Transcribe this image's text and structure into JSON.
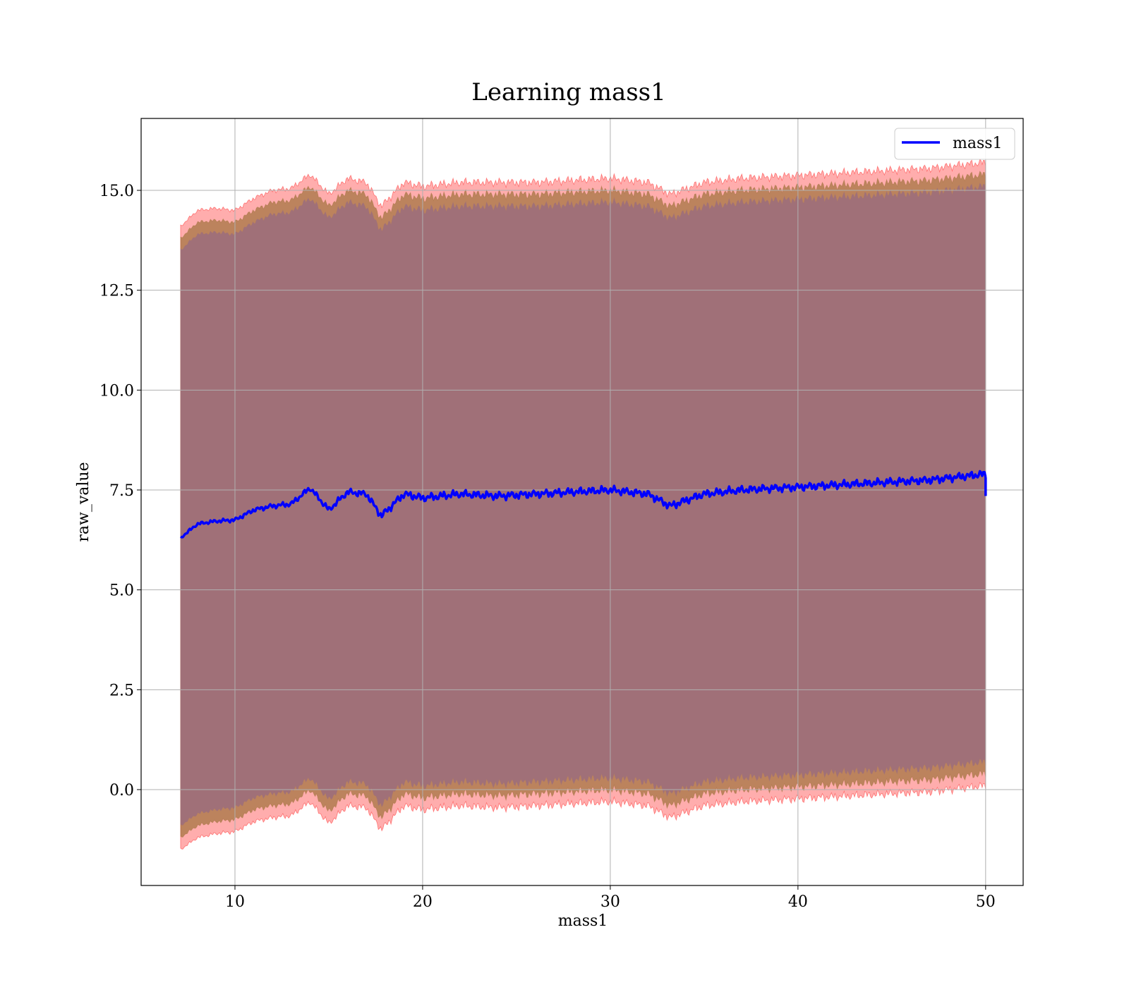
{
  "chart_data": {
    "type": "line",
    "title": "Learning mass1",
    "xlabel": "mass1",
    "ylabel": "raw_value",
    "xlim": [
      5,
      52
    ],
    "ylim": [
      -2.4,
      16.8
    ],
    "xticks": [
      10,
      20,
      30,
      40,
      50
    ],
    "yticks": [
      0.0,
      2.5,
      5.0,
      7.5,
      10.0,
      12.5,
      15.0
    ],
    "xtick_labels": [
      "10",
      "20",
      "30",
      "40",
      "50"
    ],
    "ytick_labels": [
      "0.0",
      "2.5",
      "5.0",
      "7.5",
      "10.0",
      "12.5",
      "15.0"
    ],
    "grid": true,
    "legend_position": "top-right",
    "x_range": [
      7.1,
      50.0
    ],
    "colors": {
      "line": "#0000ff",
      "band_outer": "#ff0000",
      "band_middle": "#a0703a",
      "band_inner": "#a07078",
      "grid": "#b0b0b0"
    },
    "series": [
      {
        "name": "mass1",
        "x": [
          7.1,
          8,
          9,
          10,
          11,
          12,
          13,
          14,
          15,
          16,
          17,
          17.8,
          19,
          20,
          22,
          24,
          26,
          28,
          30,
          32,
          33.2,
          35,
          37,
          39,
          41,
          43,
          45,
          47,
          49,
          50
        ],
        "y": [
          6.3,
          6.65,
          6.72,
          6.75,
          7.0,
          7.1,
          7.15,
          7.55,
          7.0,
          7.45,
          7.4,
          6.85,
          7.4,
          7.3,
          7.4,
          7.35,
          7.4,
          7.45,
          7.5,
          7.4,
          7.1,
          7.4,
          7.5,
          7.55,
          7.6,
          7.65,
          7.7,
          7.75,
          7.85,
          7.9
        ],
        "band_outer": {
          "upper": [
            14.1,
            14.5,
            14.55,
            14.5,
            14.8,
            15.0,
            15.05,
            15.4,
            14.9,
            15.3,
            15.2,
            14.6,
            15.2,
            15.1,
            15.2,
            15.2,
            15.2,
            15.25,
            15.3,
            15.2,
            14.9,
            15.2,
            15.3,
            15.35,
            15.4,
            15.45,
            15.5,
            15.55,
            15.65,
            15.7
          ],
          "lower": [
            -1.5,
            -1.2,
            -1.1,
            -1.05,
            -0.8,
            -0.7,
            -0.65,
            -0.3,
            -0.85,
            -0.4,
            -0.45,
            -1.0,
            -0.4,
            -0.5,
            -0.4,
            -0.45,
            -0.4,
            -0.35,
            -0.3,
            -0.4,
            -0.7,
            -0.4,
            -0.3,
            -0.25,
            -0.2,
            -0.15,
            -0.1,
            -0.05,
            0.05,
            0.1
          ]
        },
        "band_middle": {
          "upper": [
            13.8,
            14.2,
            14.25,
            14.2,
            14.5,
            14.7,
            14.75,
            15.1,
            14.6,
            15.0,
            14.9,
            14.3,
            14.9,
            14.8,
            14.9,
            14.9,
            14.9,
            14.95,
            15.0,
            14.9,
            14.6,
            14.9,
            15.0,
            15.05,
            15.1,
            15.15,
            15.2,
            15.25,
            15.35,
            15.4
          ],
          "lower": [
            -1.2,
            -0.9,
            -0.8,
            -0.75,
            -0.5,
            -0.4,
            -0.35,
            0.0,
            -0.55,
            -0.1,
            -0.15,
            -0.7,
            -0.1,
            -0.2,
            -0.1,
            -0.15,
            -0.1,
            -0.05,
            0.0,
            -0.1,
            -0.4,
            -0.1,
            0.0,
            0.05,
            0.1,
            0.15,
            0.2,
            0.25,
            0.35,
            0.4
          ]
        },
        "band_inner": {
          "upper": [
            13.5,
            13.9,
            13.95,
            13.9,
            14.2,
            14.4,
            14.45,
            14.8,
            14.3,
            14.7,
            14.6,
            14.0,
            14.6,
            14.5,
            14.6,
            14.6,
            14.6,
            14.65,
            14.7,
            14.6,
            14.3,
            14.6,
            14.7,
            14.75,
            14.8,
            14.85,
            14.9,
            14.95,
            15.05,
            15.1
          ],
          "lower": [
            -0.9,
            -0.6,
            -0.5,
            -0.45,
            -0.2,
            -0.1,
            -0.05,
            0.3,
            -0.25,
            0.2,
            0.15,
            -0.4,
            0.2,
            0.1,
            0.2,
            0.15,
            0.2,
            0.25,
            0.3,
            0.2,
            -0.1,
            0.2,
            0.3,
            0.35,
            0.4,
            0.45,
            0.5,
            0.55,
            0.65,
            0.7
          ]
        }
      }
    ]
  }
}
